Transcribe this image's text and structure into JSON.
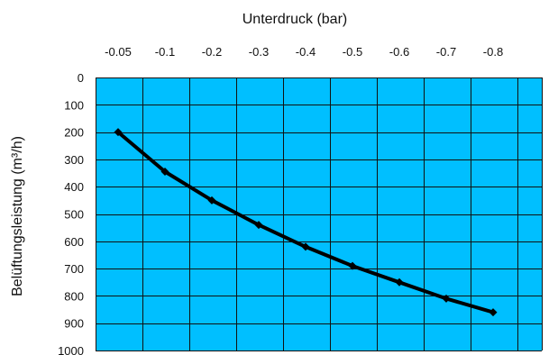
{
  "chart_data": {
    "type": "line",
    "title": "",
    "xlabel": "Unterdruck (bar)",
    "ylabel": "Belüftungsleistung (m³/h)",
    "x_tick_labels": [
      "-0.05",
      "-0.1",
      "-0.2",
      "-0.3",
      "-0.4",
      "-0.5",
      "-0.6",
      "-0.7",
      "-0.8"
    ],
    "y_tick_labels": [
      "0",
      "100",
      "200",
      "300",
      "400",
      "500",
      "600",
      "700",
      "800",
      "900",
      "1000"
    ],
    "ylim": [
      0,
      1000
    ],
    "y_inverted": true,
    "x_axis_position": "top",
    "grid": true,
    "legend": "none",
    "series": [
      {
        "x": [
          "-0.05",
          "-0.1",
          "-0.2",
          "-0.3",
          "-0.4",
          "-0.5",
          "-0.6",
          "-0.7",
          "-0.8"
        ],
        "values": [
          200,
          345,
          450,
          540,
          620,
          690,
          750,
          810,
          860
        ]
      }
    ],
    "colors": {
      "plot_background": "#00bfff",
      "grid": "#111111",
      "line": "#000000"
    }
  }
}
